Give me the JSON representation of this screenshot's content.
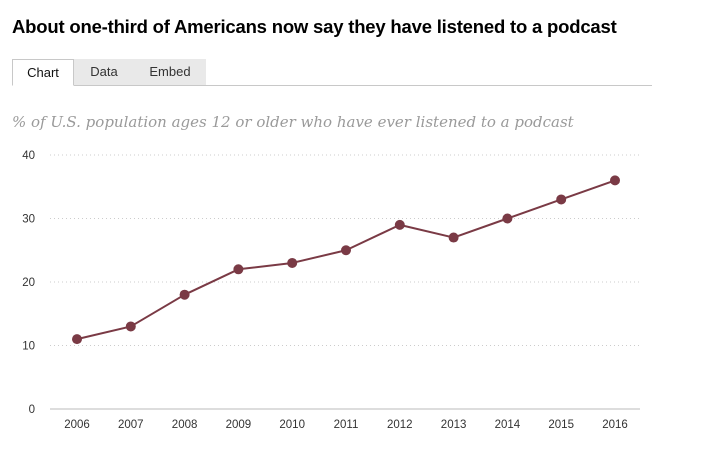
{
  "title": "About one-third of Americans now say they have listened to a podcast",
  "tabs": [
    {
      "label": "Chart",
      "active": true
    },
    {
      "label": "Data",
      "active": false
    },
    {
      "label": "Embed",
      "active": false
    }
  ],
  "colors": {
    "series": "#7a3a45",
    "grid": "#cccccc",
    "axis": "#bbbbbb"
  },
  "chart_data": {
    "type": "line",
    "subtitle": "% of U.S. population ages 12 or older who have ever listened to a podcast",
    "x": [
      "2006",
      "2007",
      "2008",
      "2009",
      "2010",
      "2011",
      "2012",
      "2013",
      "2014",
      "2015",
      "2016"
    ],
    "series": [
      {
        "name": "Ever listened to a podcast",
        "values": [
          11,
          13,
          18,
          22,
          23,
          25,
          29,
          27,
          30,
          33,
          36
        ]
      }
    ],
    "yticks": [
      "0",
      "10",
      "20",
      "30",
      "40"
    ],
    "ylim": [
      0,
      40
    ],
    "grid": true,
    "xlabel": "",
    "ylabel": ""
  }
}
